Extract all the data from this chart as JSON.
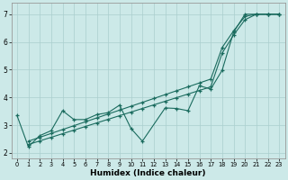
{
  "xlabel": "Humidex (Indice chaleur)",
  "bg_color": "#cce9e8",
  "line_color": "#1a6b5e",
  "grid_color": "#aacece",
  "xlim": [
    -0.5,
    23.5
  ],
  "ylim": [
    1.8,
    7.4
  ],
  "yticks": [
    2,
    3,
    4,
    5,
    6,
    7
  ],
  "xticks": [
    0,
    1,
    2,
    3,
    4,
    5,
    6,
    7,
    8,
    9,
    10,
    11,
    12,
    13,
    14,
    15,
    16,
    17,
    18,
    19,
    20,
    21,
    22,
    23
  ],
  "line1_x": [
    0,
    1,
    2,
    3,
    4,
    5,
    6,
    7,
    8,
    9,
    10,
    11,
    13,
    14,
    15,
    16,
    17,
    18,
    19,
    20,
    21,
    22,
    23
  ],
  "line1_y": [
    3.35,
    2.22,
    2.62,
    2.8,
    3.52,
    3.2,
    3.2,
    3.38,
    3.45,
    3.72,
    2.88,
    2.42,
    3.62,
    3.6,
    3.52,
    4.42,
    4.3,
    4.98,
    6.35,
    7.0,
    7.0,
    7.0,
    7.0
  ],
  "line2_x": [
    1,
    2,
    3,
    4,
    5,
    6,
    7,
    8,
    9,
    10,
    11,
    12,
    13,
    14,
    15,
    16,
    17,
    18,
    19,
    20,
    21,
    22,
    23
  ],
  "line2_y": [
    2.3,
    2.43,
    2.56,
    2.69,
    2.82,
    2.95,
    3.08,
    3.21,
    3.34,
    3.47,
    3.6,
    3.73,
    3.86,
    3.99,
    4.12,
    4.25,
    4.38,
    5.6,
    6.25,
    6.8,
    7.0,
    7.0,
    7.0
  ],
  "line3_x": [
    1,
    2,
    3,
    4,
    5,
    6,
    7,
    8,
    9,
    10,
    11,
    12,
    13,
    14,
    15,
    16,
    17,
    18,
    19,
    20,
    21,
    22,
    23
  ],
  "line3_y": [
    2.42,
    2.56,
    2.7,
    2.84,
    2.98,
    3.12,
    3.26,
    3.4,
    3.54,
    3.68,
    3.82,
    3.96,
    4.1,
    4.24,
    4.38,
    4.52,
    4.66,
    5.8,
    6.4,
    6.92,
    7.0,
    7.0,
    7.0
  ]
}
